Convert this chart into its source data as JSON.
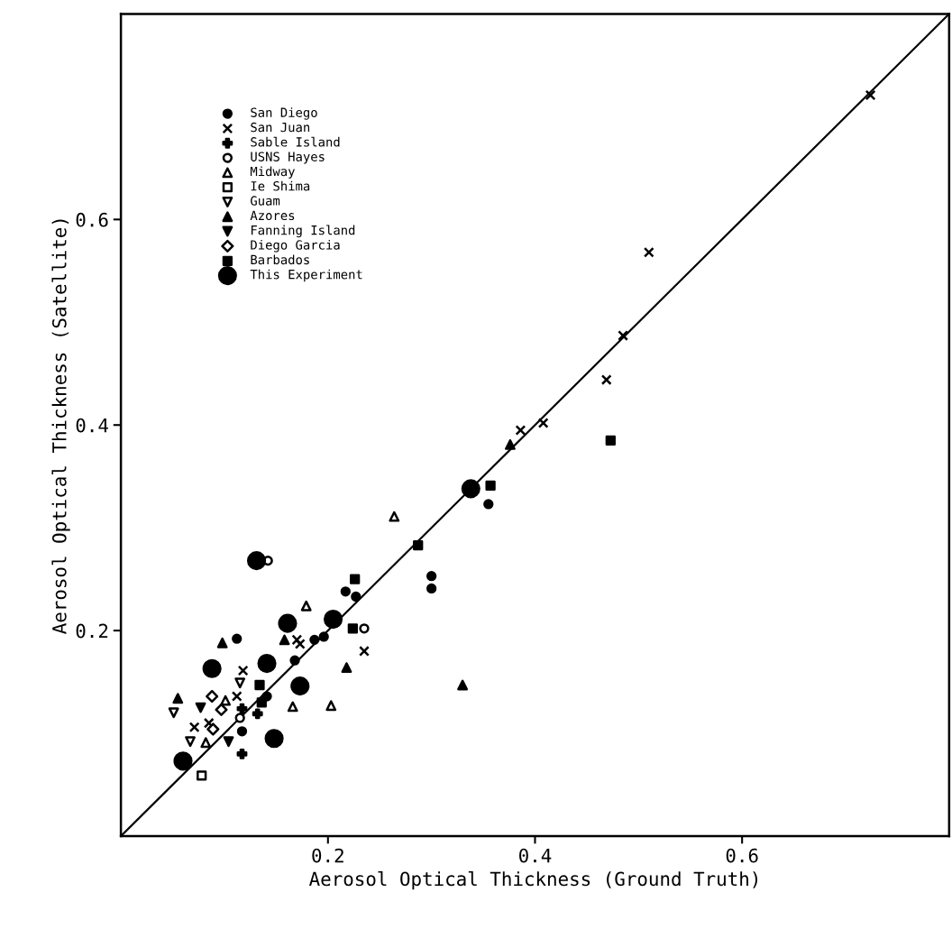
{
  "chart_data": {
    "type": "scatter",
    "xlabel": "Aerosol Optical Thickness (Ground Truth)",
    "ylabel": "Aerosol Optical Thickness (Satellite)",
    "xlim": [
      0,
      0.8
    ],
    "ylim": [
      0,
      0.8
    ],
    "xticks": [
      0.2,
      0.4,
      0.6
    ],
    "yticks": [
      0.2,
      0.4,
      0.6
    ],
    "grid": false,
    "legend": "top left",
    "series": [
      {
        "name": "San Diego",
        "color": "#000000",
        "marker": "circle",
        "x": [
          0.112,
          0.117,
          0.141,
          0.3,
          0.3,
          0.355,
          0.217,
          0.227,
          0.187,
          0.196,
          0.168
        ],
        "values": [
          0.192,
          0.102,
          0.136,
          0.253,
          0.241,
          0.323,
          0.238,
          0.233,
          0.191,
          0.194,
          0.171
        ]
      },
      {
        "name": "San Juan",
        "color": "#000000",
        "marker": "cross",
        "x": [
          0.724,
          0.51,
          0.485,
          0.469,
          0.408,
          0.386,
          0.235,
          0.173,
          0.118,
          0.071,
          0.085,
          0.17,
          0.112
        ],
        "values": [
          0.721,
          0.568,
          0.487,
          0.444,
          0.402,
          0.395,
          0.18,
          0.187,
          0.161,
          0.106,
          0.11,
          0.191,
          0.136
        ]
      },
      {
        "name": "Sable Island",
        "color": "#000000",
        "marker": "plus",
        "x": [
          0.132,
          0.117,
          0.117
        ],
        "values": [
          0.119,
          0.08,
          0.124
        ]
      },
      {
        "name": "USNS Hayes",
        "color": "#000000",
        "marker": "circle_open",
        "x": [
          0.235,
          0.115,
          0.142
        ],
        "values": [
          0.202,
          0.115,
          0.268
        ]
      },
      {
        "name": "Midway",
        "color": "#000000",
        "marker": "triangle_open",
        "x": [
          0.264,
          0.179,
          0.101,
          0.166,
          0.203,
          0.082
        ],
        "values": [
          0.311,
          0.224,
          0.132,
          0.126,
          0.127,
          0.091
        ]
      },
      {
        "name": "Ie Shima",
        "color": "#000000",
        "marker": "square_open",
        "x": [
          0.078
        ],
        "values": [
          0.059
        ]
      },
      {
        "name": "Guam",
        "color": "#000000",
        "marker": "triangle_down_open",
        "x": [
          0.051,
          0.067,
          0.115
        ],
        "values": [
          0.12,
          0.092,
          0.149
        ]
      },
      {
        "name": "Azores",
        "color": "#000000",
        "marker": "triangle",
        "x": [
          0.098,
          0.055,
          0.158,
          0.218,
          0.376,
          0.33
        ],
        "values": [
          0.188,
          0.134,
          0.191,
          0.164,
          0.381,
          0.147
        ]
      },
      {
        "name": "Fanning Island",
        "color": "#000000",
        "marker": "triangle_down",
        "x": [
          0.077,
          0.104
        ],
        "values": [
          0.125,
          0.092
        ]
      },
      {
        "name": "Diego Garcia",
        "color": "#000000",
        "marker": "diamond_open",
        "x": [
          0.088,
          0.097,
          0.089
        ],
        "values": [
          0.136,
          0.123,
          0.104
        ]
      },
      {
        "name": "Barbados",
        "color": "#000000",
        "marker": "square",
        "x": [
          0.134,
          0.226,
          0.224,
          0.287,
          0.357,
          0.473,
          0.136
        ],
        "values": [
          0.147,
          0.25,
          0.202,
          0.283,
          0.341,
          0.385,
          0.13
        ]
      },
      {
        "name": "This Experiment",
        "color": "#000000",
        "marker": "circle_large",
        "x": [
          0.131,
          0.161,
          0.141,
          0.088,
          0.173,
          0.148,
          0.06,
          0.205,
          0.338
        ],
        "values": [
          0.268,
          0.207,
          0.168,
          0.163,
          0.146,
          0.095,
          0.073,
          0.211,
          0.338
        ]
      },
      {
        "type": "line",
        "color": "#000000",
        "line_style": "solid",
        "x": [
          0,
          0.8
        ],
        "values": [
          0,
          0.8
        ]
      }
    ]
  }
}
